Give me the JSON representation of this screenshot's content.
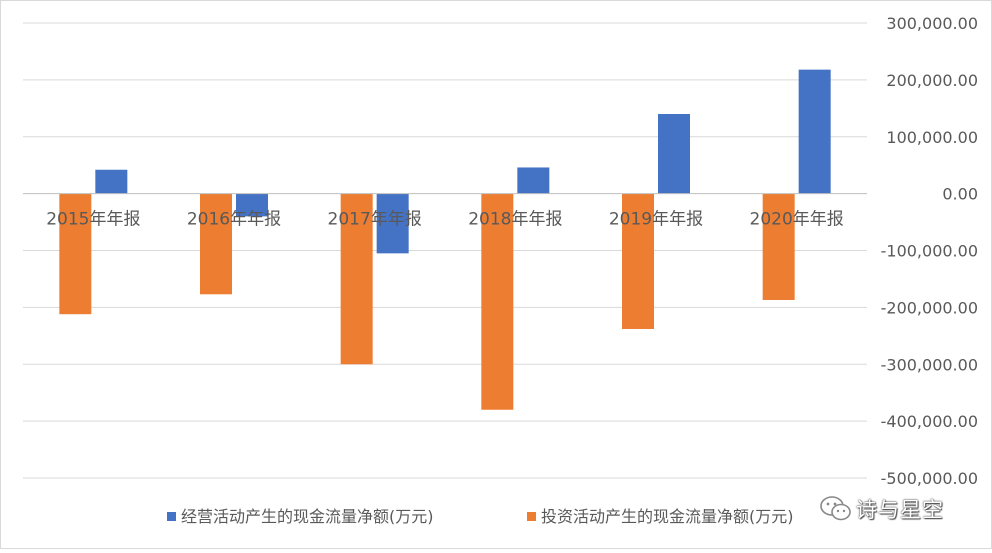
{
  "chart_data": {
    "type": "bar",
    "title": "",
    "xlabel": "",
    "ylabel": "",
    "categories": [
      "2015年年报",
      "2016年年报",
      "2017年年报",
      "2018年年报",
      "2019年年报",
      "2020年年报"
    ],
    "series": [
      {
        "name": "经营活动产生的现金流量净额(万元)",
        "color": "#4472C4",
        "values": [
          42000,
          -40000,
          -105000,
          46000,
          140000,
          218000
        ]
      },
      {
        "name": "投资活动产生的现金流量净额(万元)",
        "color": "#ED7D31",
        "values": [
          -212000,
          -177000,
          -300000,
          -380000,
          -238000,
          -187000
        ]
      }
    ],
    "ylim": [
      -500000,
      300000
    ],
    "yticks": [
      300000,
      200000,
      100000,
      0,
      -100000,
      -200000,
      -300000,
      -400000,
      -500000
    ],
    "ytick_labels": [
      "300,000.00",
      "200,000.00",
      "100,000.00",
      "0.00",
      "-100,000.00",
      "-200,000.00",
      "-300,000.00",
      "-400,000.00",
      "-500,000.00"
    ],
    "y_axis_side": "right",
    "grid": true,
    "legend": "bottom"
  },
  "watermark": {
    "text": "诗与星空",
    "icon": "wechat-icon"
  }
}
